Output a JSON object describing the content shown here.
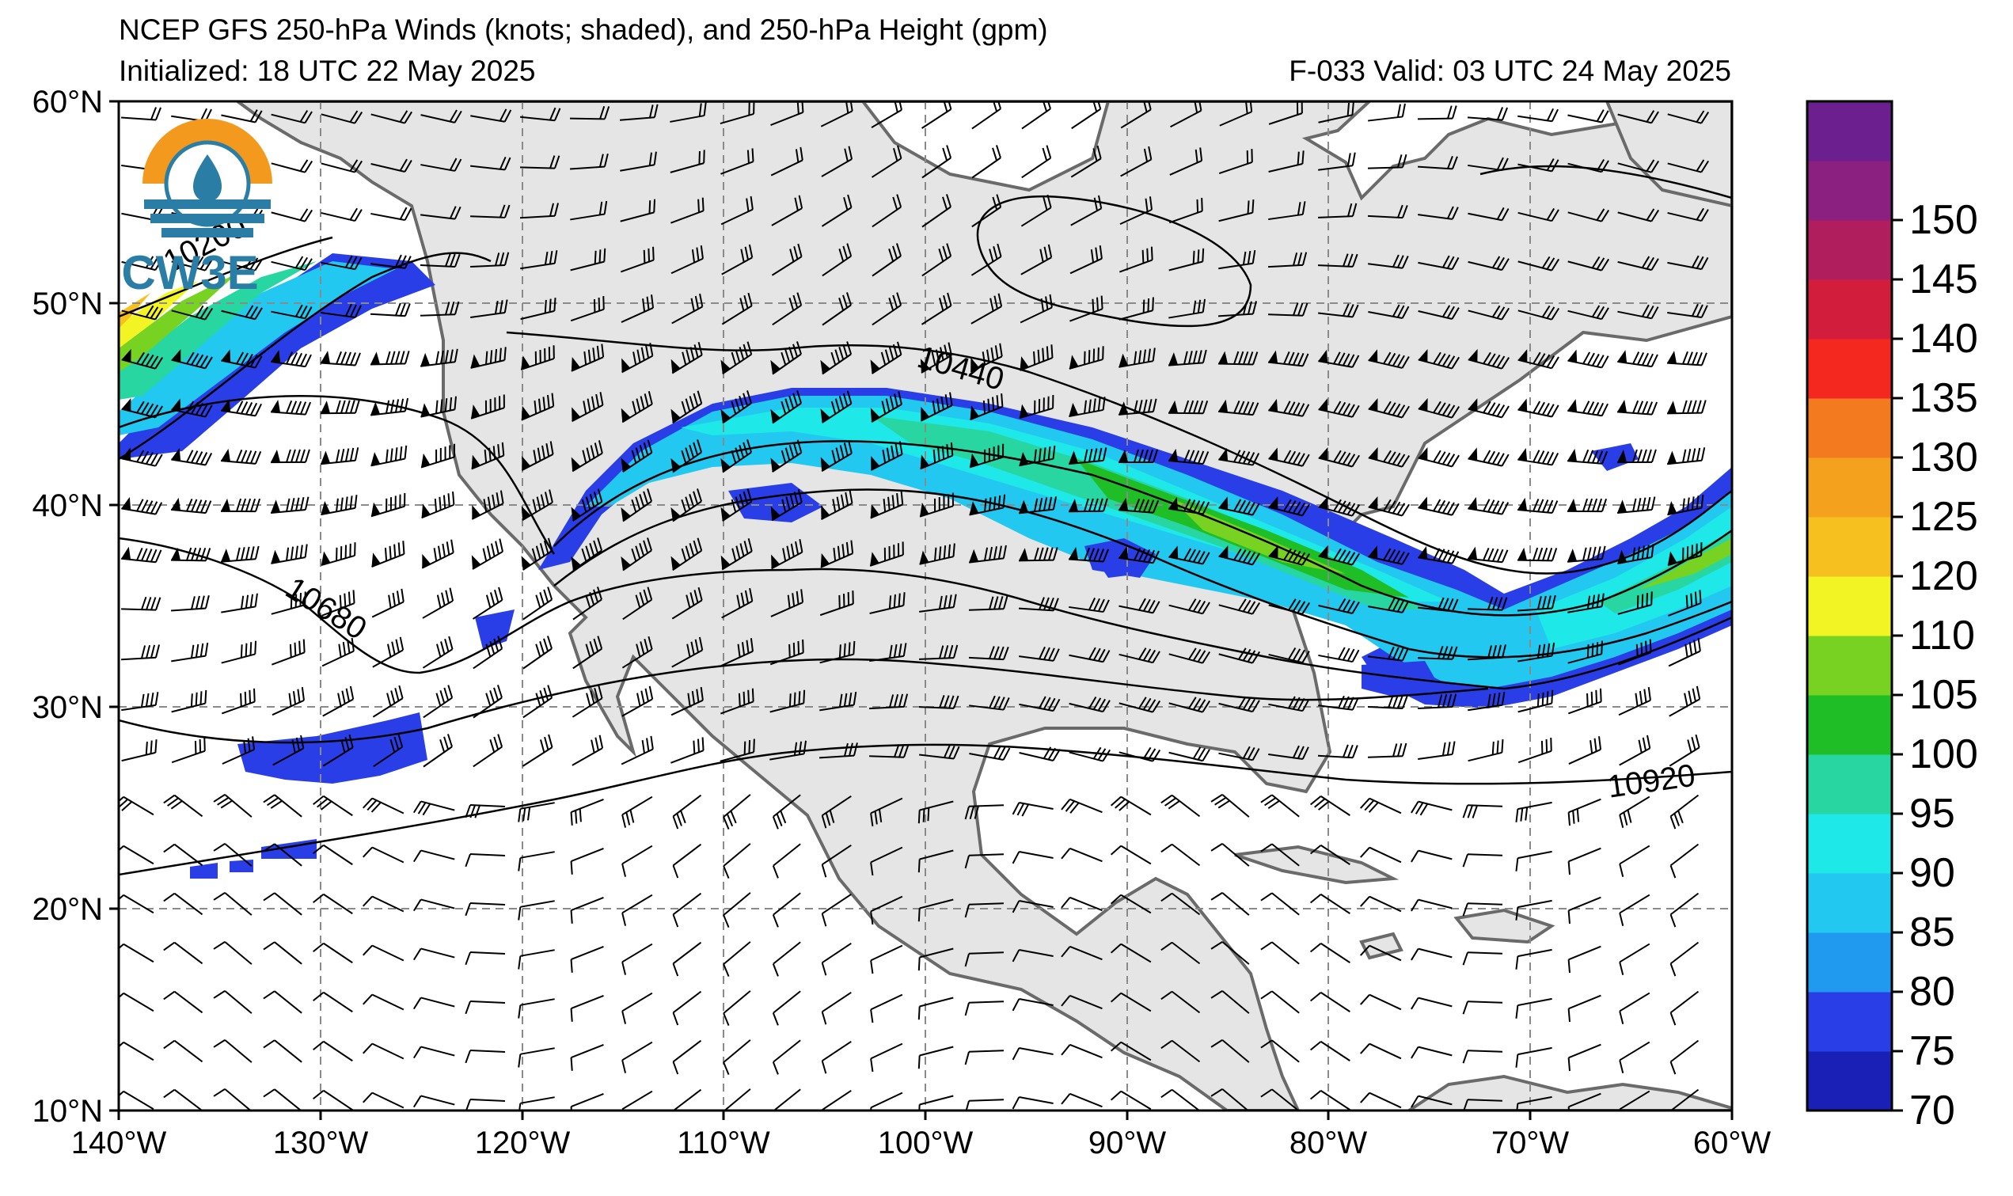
{
  "header": {
    "title": "NCEP GFS 250-hPa Winds (knots; shaded), and 250-hPa Height (gpm)",
    "initialized": "Initialized: 18 UTC 22 May 2025",
    "valid": "F-033  Valid: 03 UTC 24 May 2025"
  },
  "logo": {
    "text": "CW3E",
    "name": "cw3e-logo"
  },
  "axes": {
    "lat_labels": [
      "60°N",
      "50°N",
      "40°N",
      "30°N",
      "20°N",
      "10°N"
    ],
    "lon_labels": [
      "140°W",
      "130°W",
      "120°W",
      "110°W",
      "100°W",
      "90°W",
      "80°W",
      "70°W",
      "60°W"
    ],
    "lon_range": [
      -140,
      -60
    ],
    "lat_range": [
      10,
      60
    ]
  },
  "contour_labels": [
    "10200",
    "10440",
    "10680",
    "10920"
  ],
  "colorbar": {
    "ticks": [
      "70",
      "75",
      "80",
      "85",
      "90",
      "95",
      "100",
      "105",
      "110",
      "120",
      "125",
      "130",
      "135",
      "140",
      "145",
      "150"
    ],
    "colors": [
      "#1a20b5",
      "#2a3ee8",
      "#1f9aee",
      "#22c8f0",
      "#1ee8e8",
      "#28d6a2",
      "#1fbe27",
      "#78d222",
      "#f3f424",
      "#f6c01f",
      "#f4a21e",
      "#f47a20",
      "#f52820",
      "#d21e3c",
      "#b01e5e",
      "#8c2080",
      "#6c2090"
    ]
  }
}
